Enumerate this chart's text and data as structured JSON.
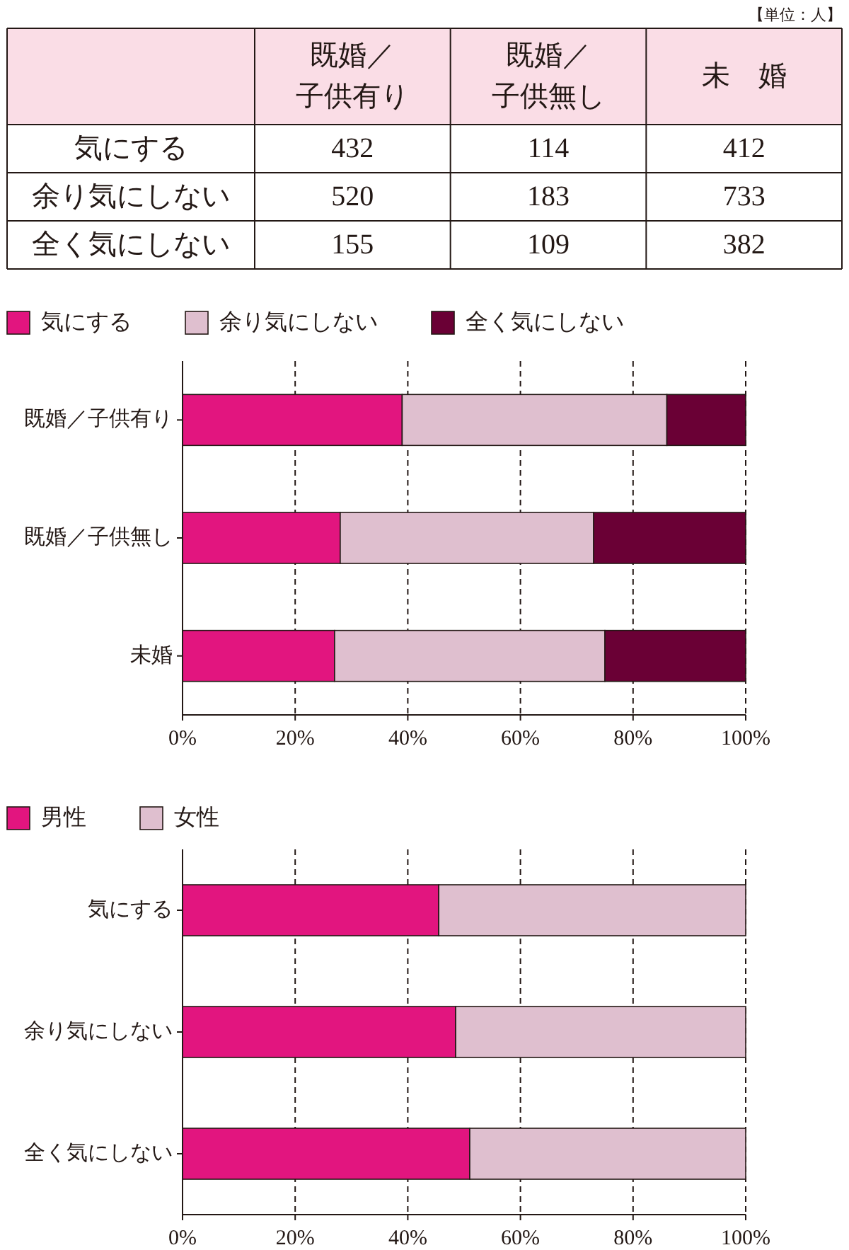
{
  "chart_data": [
    {
      "type": "heatmap",
      "categories": [
        "既婚／子供有り",
        "既婚／子供無し",
        "未　婚"
      ],
      "y_categories": [
        "気にする",
        "余り気にしない",
        "全く気にしない"
      ],
      "cells": [
        [
          432,
          114,
          412
        ],
        [
          520,
          183,
          733
        ],
        [
          155,
          109,
          382
        ]
      ],
      "data_labels": true,
      "annotations": [
        "【単位：人】"
      ]
    },
    {
      "type": "bar",
      "orientation": "horizontal",
      "stacked": true,
      "categories": [
        "既婚／子供有り",
        "既婚／子供無し",
        "未婚"
      ],
      "series": [
        {
          "name": "気にする",
          "color": "#e2157f",
          "values": [
            39,
            28,
            27
          ]
        },
        {
          "name": "余り気にしない",
          "color": "#dfbfcf",
          "values": [
            47,
            45,
            48
          ]
        },
        {
          "name": "全く気にしない",
          "color": "#6a0035",
          "values": [
            14,
            27,
            25
          ]
        }
      ],
      "xlim": [
        0,
        100
      ],
      "xticks": [
        {
          "value": 0,
          "label": "0%"
        },
        {
          "value": 20,
          "label": "20%"
        },
        {
          "value": 40,
          "label": "40%"
        },
        {
          "value": 60,
          "label": "60%"
        },
        {
          "value": 80,
          "label": "80%"
        },
        {
          "value": 100,
          "label": "100%"
        }
      ],
      "grid": "x",
      "legend": "top left"
    },
    {
      "type": "bar",
      "orientation": "horizontal",
      "stacked": true,
      "categories": [
        "気にする",
        "余り気にしない",
        "全く気にしない"
      ],
      "series": [
        {
          "name": "男性",
          "color": "#e2157f",
          "values": [
            45.5,
            48.5,
            51
          ]
        },
        {
          "name": "女性",
          "color": "#dfbfcf",
          "values": [
            54.5,
            51.5,
            49
          ]
        }
      ],
      "xlim": [
        0,
        100
      ],
      "xticks": [
        {
          "value": 0,
          "label": "0%"
        },
        {
          "value": 20,
          "label": "20%"
        },
        {
          "value": 40,
          "label": "40%"
        },
        {
          "value": 60,
          "label": "60%"
        },
        {
          "value": 80,
          "label": "80%"
        },
        {
          "value": 100,
          "label": "100%"
        }
      ],
      "grid": "x",
      "legend": "top left"
    }
  ]
}
